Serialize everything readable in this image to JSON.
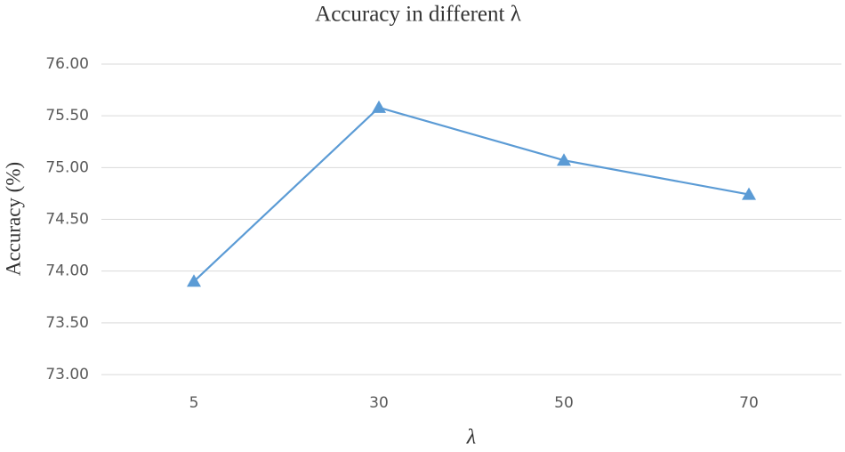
{
  "chart_data": {
    "type": "line",
    "title": "Accuracy in different λ",
    "x_label": "λ",
    "y_label": "Accuracy (%)",
    "categories": [
      "5",
      "30",
      "50",
      "70"
    ],
    "series": [
      {
        "name": "Accuracy",
        "color": "#5b9bd5",
        "values": [
          73.9,
          75.58,
          75.07,
          74.74
        ]
      }
    ],
    "ylim": [
      73,
      76
    ],
    "yticks": [
      {
        "value": 73,
        "label": "73.00"
      },
      {
        "value": 73.5,
        "label": "73.50"
      },
      {
        "value": 74,
        "label": "74.00"
      },
      {
        "value": 74.5,
        "label": "74.50"
      },
      {
        "value": 75,
        "label": "75.00"
      },
      {
        "value": 75.5,
        "label": "75.50"
      },
      {
        "value": 76,
        "label": "76.00"
      }
    ],
    "grid": true,
    "marker": "triangle"
  }
}
